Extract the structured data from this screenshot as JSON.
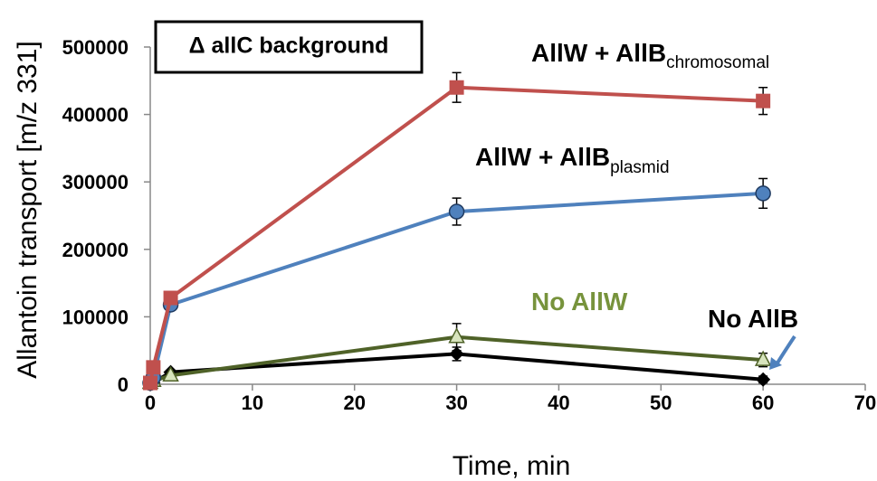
{
  "chart_data": {
    "type": "line",
    "title": "",
    "xlabel": "Time, min",
    "ylabel": "Allantoin transport [m/z 331]",
    "xlim": [
      0,
      70
    ],
    "ylim": [
      0,
      500000
    ],
    "x_ticks": [
      "0",
      "10",
      "20",
      "30",
      "40",
      "50",
      "60",
      "70"
    ],
    "y_ticks": [
      "0",
      "100000",
      "200000",
      "300000",
      "400000",
      "500000"
    ],
    "grid": false,
    "box_label": "Δ allC background",
    "series": [
      {
        "label_main": "AllW + AllB",
        "label_sub": "chromosomal",
        "color": "#c0504d",
        "marker": "square",
        "x": [
          0,
          0.3,
          2,
          30,
          60
        ],
        "y": [
          2000,
          25000,
          128000,
          440000,
          420000
        ],
        "err": [
          0,
          0,
          0,
          22000,
          20000
        ]
      },
      {
        "label_main": "AllW + AllB",
        "label_sub": "plasmid",
        "color": "#4f81bd",
        "marker": "circle",
        "x": [
          0,
          0.3,
          2,
          30,
          60
        ],
        "y": [
          2000,
          10000,
          118000,
          256000,
          283000
        ],
        "err": [
          0,
          0,
          0,
          20000,
          22000
        ]
      },
      {
        "label_main": "No AllW",
        "label_sub": "",
        "color": "#4f6228",
        "marker": "triangle",
        "marker_fill": "#d7e4bd",
        "x": [
          0,
          0.3,
          2,
          30,
          60
        ],
        "y": [
          2000,
          5000,
          13000,
          70000,
          36000
        ],
        "err": [
          0,
          0,
          0,
          20000,
          10000
        ]
      },
      {
        "label_main": "No AllB",
        "label_sub": "",
        "color": "#000000",
        "marker": "diamond",
        "x": [
          0,
          0.3,
          2,
          30,
          60
        ],
        "y": [
          0,
          2000,
          18000,
          45000,
          7000
        ],
        "err": [
          0,
          0,
          0,
          10000,
          5000
        ]
      }
    ]
  }
}
